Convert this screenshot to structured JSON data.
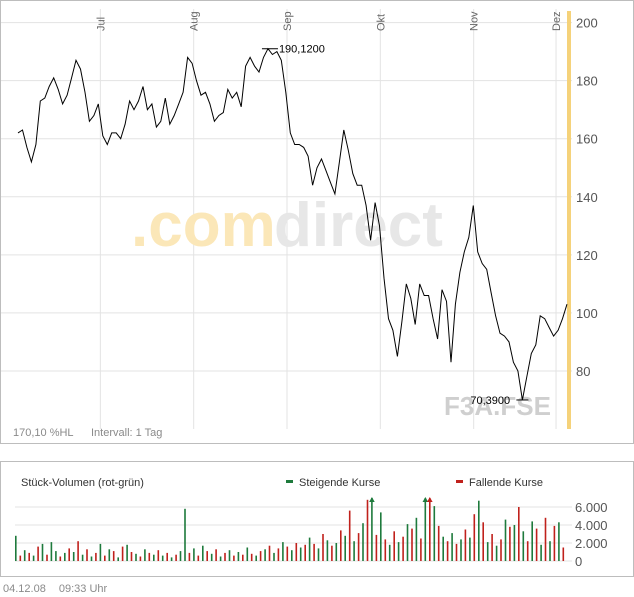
{
  "price_chart": {
    "type": "line",
    "months": [
      "Jul",
      "Aug",
      "Sep",
      "Okt",
      "Nov",
      "Dez"
    ],
    "y_ticks": [
      "200",
      "180",
      "160",
      "140",
      "120",
      "100",
      "80"
    ],
    "ylim": [
      60,
      204
    ],
    "watermark": {
      "left": ".com",
      "right": "direct"
    },
    "ticker": "F3A.FSE",
    "max_label": "190,1200",
    "min_label": "70,3900",
    "footer_range": "170,10 %HL",
    "footer_interval": "Intervall: 1 Tag",
    "line_color": "#000000",
    "accent_color": "#f5d27a"
  },
  "volume_chart": {
    "type": "bar",
    "label": "Stück-Volumen (rot-grün)",
    "legend_up": "Steigende Kurse",
    "legend_down": "Fallende Kurse",
    "up_color": "#1e7a3c",
    "down_color": "#c0211c",
    "y_ticks": [
      "6.000",
      "4.000",
      "2.000",
      "0"
    ],
    "ylim": [
      0,
      7000
    ]
  },
  "chart_data": {
    "type": "line",
    "series": [
      {
        "values": [
          162,
          163,
          157,
          152,
          158,
          173,
          174,
          178,
          181,
          177,
          172,
          175,
          181,
          187,
          184,
          176,
          166,
          168,
          172,
          161,
          158,
          162,
          162,
          160,
          165,
          173,
          170,
          173,
          178,
          170,
          172,
          164,
          166,
          174,
          165,
          168,
          172,
          176,
          188,
          186,
          180,
          175,
          176,
          172,
          166,
          168,
          169,
          177,
          174,
          176,
          171,
          185,
          188,
          185,
          183,
          188,
          191,
          189,
          190,
          187,
          176,
          162,
          158,
          158,
          157,
          154,
          144,
          150,
          153,
          149,
          145,
          141,
          152,
          163,
          156,
          148,
          144,
          144,
          137,
          125,
          138,
          130,
          112,
          98,
          94,
          85,
          97,
          110,
          105,
          96,
          110,
          106,
          106,
          98,
          91,
          108,
          104,
          83,
          103,
          114,
          121,
          126,
          137,
          121,
          117,
          115,
          107,
          99,
          93,
          92,
          90,
          83,
          80,
          70,
          78,
          86,
          89,
          99,
          98,
          95,
          92,
          94,
          98,
          103
        ]
      }
    ],
    "volume": [
      {
        "dir": "up",
        "v": 2800
      },
      {
        "dir": "down",
        "v": 600
      },
      {
        "dir": "up",
        "v": 1200
      },
      {
        "dir": "down",
        "v": 900
      },
      {
        "dir": "up",
        "v": 600
      },
      {
        "dir": "down",
        "v": 1600
      },
      {
        "dir": "up",
        "v": 1900
      },
      {
        "dir": "down",
        "v": 700
      },
      {
        "dir": "up",
        "v": 2100
      },
      {
        "dir": "up",
        "v": 1100
      },
      {
        "dir": "down",
        "v": 500
      },
      {
        "dir": "up",
        "v": 900
      },
      {
        "dir": "down",
        "v": 1400
      },
      {
        "dir": "up",
        "v": 1000
      },
      {
        "dir": "down",
        "v": 2200
      },
      {
        "dir": "up",
        "v": 700
      },
      {
        "dir": "down",
        "v": 1300
      },
      {
        "dir": "up",
        "v": 500
      },
      {
        "dir": "down",
        "v": 900
      },
      {
        "dir": "up",
        "v": 1900
      },
      {
        "dir": "down",
        "v": 600
      },
      {
        "dir": "up",
        "v": 1300
      },
      {
        "dir": "down",
        "v": 1100
      },
      {
        "dir": "up",
        "v": 400
      },
      {
        "dir": "down",
        "v": 1600
      },
      {
        "dir": "up",
        "v": 1800
      },
      {
        "dir": "down",
        "v": 1000
      },
      {
        "dir": "up",
        "v": 800
      },
      {
        "dir": "down",
        "v": 500
      },
      {
        "dir": "up",
        "v": 1300
      },
      {
        "dir": "down",
        "v": 900
      },
      {
        "dir": "up",
        "v": 700
      },
      {
        "dir": "down",
        "v": 1200
      },
      {
        "dir": "up",
        "v": 600
      },
      {
        "dir": "down",
        "v": 900
      },
      {
        "dir": "up",
        "v": 400
      },
      {
        "dir": "down",
        "v": 700
      },
      {
        "dir": "up",
        "v": 1100
      },
      {
        "dir": "up",
        "v": 5800
      },
      {
        "dir": "down",
        "v": 900
      },
      {
        "dir": "up",
        "v": 1400
      },
      {
        "dir": "down",
        "v": 600
      },
      {
        "dir": "up",
        "v": 1700
      },
      {
        "dir": "down",
        "v": 1100
      },
      {
        "dir": "up",
        "v": 800
      },
      {
        "dir": "down",
        "v": 1300
      },
      {
        "dir": "up",
        "v": 500
      },
      {
        "dir": "down",
        "v": 900
      },
      {
        "dir": "up",
        "v": 1200
      },
      {
        "dir": "down",
        "v": 600
      },
      {
        "dir": "up",
        "v": 1000
      },
      {
        "dir": "down",
        "v": 700
      },
      {
        "dir": "up",
        "v": 1500
      },
      {
        "dir": "down",
        "v": 800
      },
      {
        "dir": "up",
        "v": 600
      },
      {
        "dir": "down",
        "v": 1100
      },
      {
        "dir": "up",
        "v": 1300
      },
      {
        "dir": "down",
        "v": 1700
      },
      {
        "dir": "up",
        "v": 900
      },
      {
        "dir": "down",
        "v": 1400
      },
      {
        "dir": "up",
        "v": 2100
      },
      {
        "dir": "down",
        "v": 1600
      },
      {
        "dir": "up",
        "v": 1200
      },
      {
        "dir": "down",
        "v": 2000
      },
      {
        "dir": "up",
        "v": 1500
      },
      {
        "dir": "down",
        "v": 1800
      },
      {
        "dir": "up",
        "v": 2600
      },
      {
        "dir": "down",
        "v": 1900
      },
      {
        "dir": "up",
        "v": 1400
      },
      {
        "dir": "down",
        "v": 3000
      },
      {
        "dir": "up",
        "v": 2300
      },
      {
        "dir": "down",
        "v": 1700
      },
      {
        "dir": "up",
        "v": 2000
      },
      {
        "dir": "down",
        "v": 3400
      },
      {
        "dir": "up",
        "v": 2800
      },
      {
        "dir": "down",
        "v": 5600
      },
      {
        "dir": "up",
        "v": 2200
      },
      {
        "dir": "down",
        "v": 3100
      },
      {
        "dir": "up",
        "v": 4200
      },
      {
        "dir": "down",
        "v": 6800
      },
      {
        "dir": "up",
        "v": 7200
      },
      {
        "dir": "down",
        "v": 2900
      },
      {
        "dir": "up",
        "v": 5400
      },
      {
        "dir": "down",
        "v": 2400
      },
      {
        "dir": "up",
        "v": 1800
      },
      {
        "dir": "down",
        "v": 3300
      },
      {
        "dir": "up",
        "v": 2100
      },
      {
        "dir": "down",
        "v": 2700
      },
      {
        "dir": "up",
        "v": 4100
      },
      {
        "dir": "down",
        "v": 3600
      },
      {
        "dir": "up",
        "v": 4800
      },
      {
        "dir": "down",
        "v": 2500
      },
      {
        "dir": "up",
        "v": 7400
      },
      {
        "dir": "down",
        "v": 7600
      },
      {
        "dir": "up",
        "v": 6100
      },
      {
        "dir": "down",
        "v": 3900
      },
      {
        "dir": "up",
        "v": 2700
      },
      {
        "dir": "down",
        "v": 2200
      },
      {
        "dir": "up",
        "v": 3100
      },
      {
        "dir": "down",
        "v": 1900
      },
      {
        "dir": "up",
        "v": 2400
      },
      {
        "dir": "down",
        "v": 3500
      },
      {
        "dir": "up",
        "v": 2600
      },
      {
        "dir": "down",
        "v": 5200
      },
      {
        "dir": "up",
        "v": 6700
      },
      {
        "dir": "down",
        "v": 4300
      },
      {
        "dir": "up",
        "v": 2100
      },
      {
        "dir": "down",
        "v": 3000
      },
      {
        "dir": "up",
        "v": 1700
      },
      {
        "dir": "down",
        "v": 2400
      },
      {
        "dir": "up",
        "v": 4600
      },
      {
        "dir": "down",
        "v": 3800
      },
      {
        "dir": "up",
        "v": 4000
      },
      {
        "dir": "down",
        "v": 6000
      },
      {
        "dir": "up",
        "v": 3300
      },
      {
        "dir": "down",
        "v": 2200
      },
      {
        "dir": "up",
        "v": 4400
      },
      {
        "dir": "down",
        "v": 3600
      },
      {
        "dir": "up",
        "v": 1800
      },
      {
        "dir": "down",
        "v": 4800
      },
      {
        "dir": "up",
        "v": 2200
      },
      {
        "dir": "down",
        "v": 3900
      },
      {
        "dir": "up",
        "v": 4300
      },
      {
        "dir": "down",
        "v": 1500
      }
    ],
    "ylim": [
      60,
      204
    ]
  },
  "footer": {
    "date": "04.12.08",
    "time": "09:33 Uhr"
  }
}
